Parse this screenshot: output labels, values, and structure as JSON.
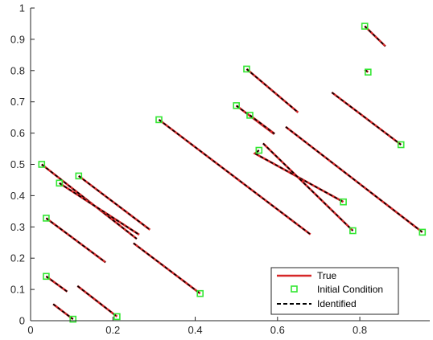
{
  "chart_data": {
    "type": "line",
    "xlim": [
      0,
      0.97
    ],
    "ylim": [
      0,
      1
    ],
    "xticks": [
      "0",
      "0.2",
      "0.4",
      "0.6",
      "0.8"
    ],
    "yticks": [
      "0",
      "0.1",
      "0.2",
      "0.3",
      "0.4",
      "0.5",
      "0.6",
      "0.7",
      "0.8",
      "0.9",
      "1"
    ],
    "grid": false,
    "legend_location": "bottom-right",
    "colors": {
      "true": "#d62728",
      "initial": "#32e632",
      "identified": "#000000"
    },
    "series": [
      {
        "name": "True",
        "style": "solid red line"
      },
      {
        "name": "Initial Condition",
        "style": "green hollow square marker"
      },
      {
        "name": "Identified",
        "style": "dashed black line"
      }
    ],
    "trajectories": [
      {
        "x": [
          0.027,
          0.258
        ],
        "y": [
          0.5,
          0.262
        ],
        "ic": [
          0.027,
          0.5
        ]
      },
      {
        "x": [
          0.07,
          0.264
        ],
        "y": [
          0.44,
          0.275
        ],
        "ic": [
          0.07,
          0.44
        ]
      },
      {
        "x": [
          0.117,
          0.29
        ],
        "y": [
          0.463,
          0.291
        ],
        "ic": [
          0.117,
          0.463
        ]
      },
      {
        "x": [
          0.038,
          0.182
        ],
        "y": [
          0.328,
          0.187
        ],
        "ic": [
          0.038,
          0.328
        ]
      },
      {
        "x": [
          0.038,
          0.089
        ],
        "y": [
          0.142,
          0.093
        ],
        "ic": [
          0.038,
          0.142
        ]
      },
      {
        "x": [
          0.055,
          0.103
        ],
        "y": [
          0.053,
          0.005
        ],
        "ic": [
          0.103,
          0.005
        ]
      },
      {
        "x": [
          0.114,
          0.21
        ],
        "y": [
          0.111,
          0.013
        ],
        "ic": [
          0.21,
          0.013
        ]
      },
      {
        "x": [
          0.25,
          0.412
        ],
        "y": [
          0.248,
          0.087
        ],
        "ic": [
          0.412,
          0.087
        ]
      },
      {
        "x": [
          0.312,
          0.68
        ],
        "y": [
          0.643,
          0.276
        ],
        "ic": [
          0.312,
          0.643
        ]
      },
      {
        "x": [
          0.525,
          0.65
        ],
        "y": [
          0.805,
          0.666
        ],
        "ic": [
          0.525,
          0.805
        ]
      },
      {
        "x": [
          0.5,
          0.592
        ],
        "y": [
          0.688,
          0.597
        ],
        "ic": [
          0.5,
          0.688
        ]
      },
      {
        "x": [
          0.533,
          0.593
        ],
        "y": [
          0.657,
          0.598
        ],
        "ic": [
          0.533,
          0.657
        ]
      },
      {
        "x": [
          0.555,
          0.545,
          0.76
        ],
        "y": [
          0.545,
          0.535,
          0.38
        ],
        "ic": [
          0.555,
          0.545
        ],
        "end_ic": [
          0.76,
          0.38
        ]
      },
      {
        "x": [
          0.565,
          0.783
        ],
        "y": [
          0.567,
          0.288
        ],
        "ic": [
          0.783,
          0.288
        ]
      },
      {
        "x": [
          0.62,
          0.952
        ],
        "y": [
          0.62,
          0.283
        ],
        "ic": [
          0.952,
          0.283
        ]
      },
      {
        "x": [
          0.732,
          0.9
        ],
        "y": [
          0.73,
          0.563
        ],
        "ic": [
          0.9,
          0.563
        ]
      },
      {
        "x": [
          0.812,
          0.862
        ],
        "y": [
          0.942,
          0.878
        ],
        "ic": [
          0.812,
          0.942
        ]
      },
      {
        "x": [
          0.812,
          0.82
        ],
        "y": [
          0.803,
          0.795
        ],
        "ic": [
          0.82,
          0.795
        ]
      }
    ]
  }
}
